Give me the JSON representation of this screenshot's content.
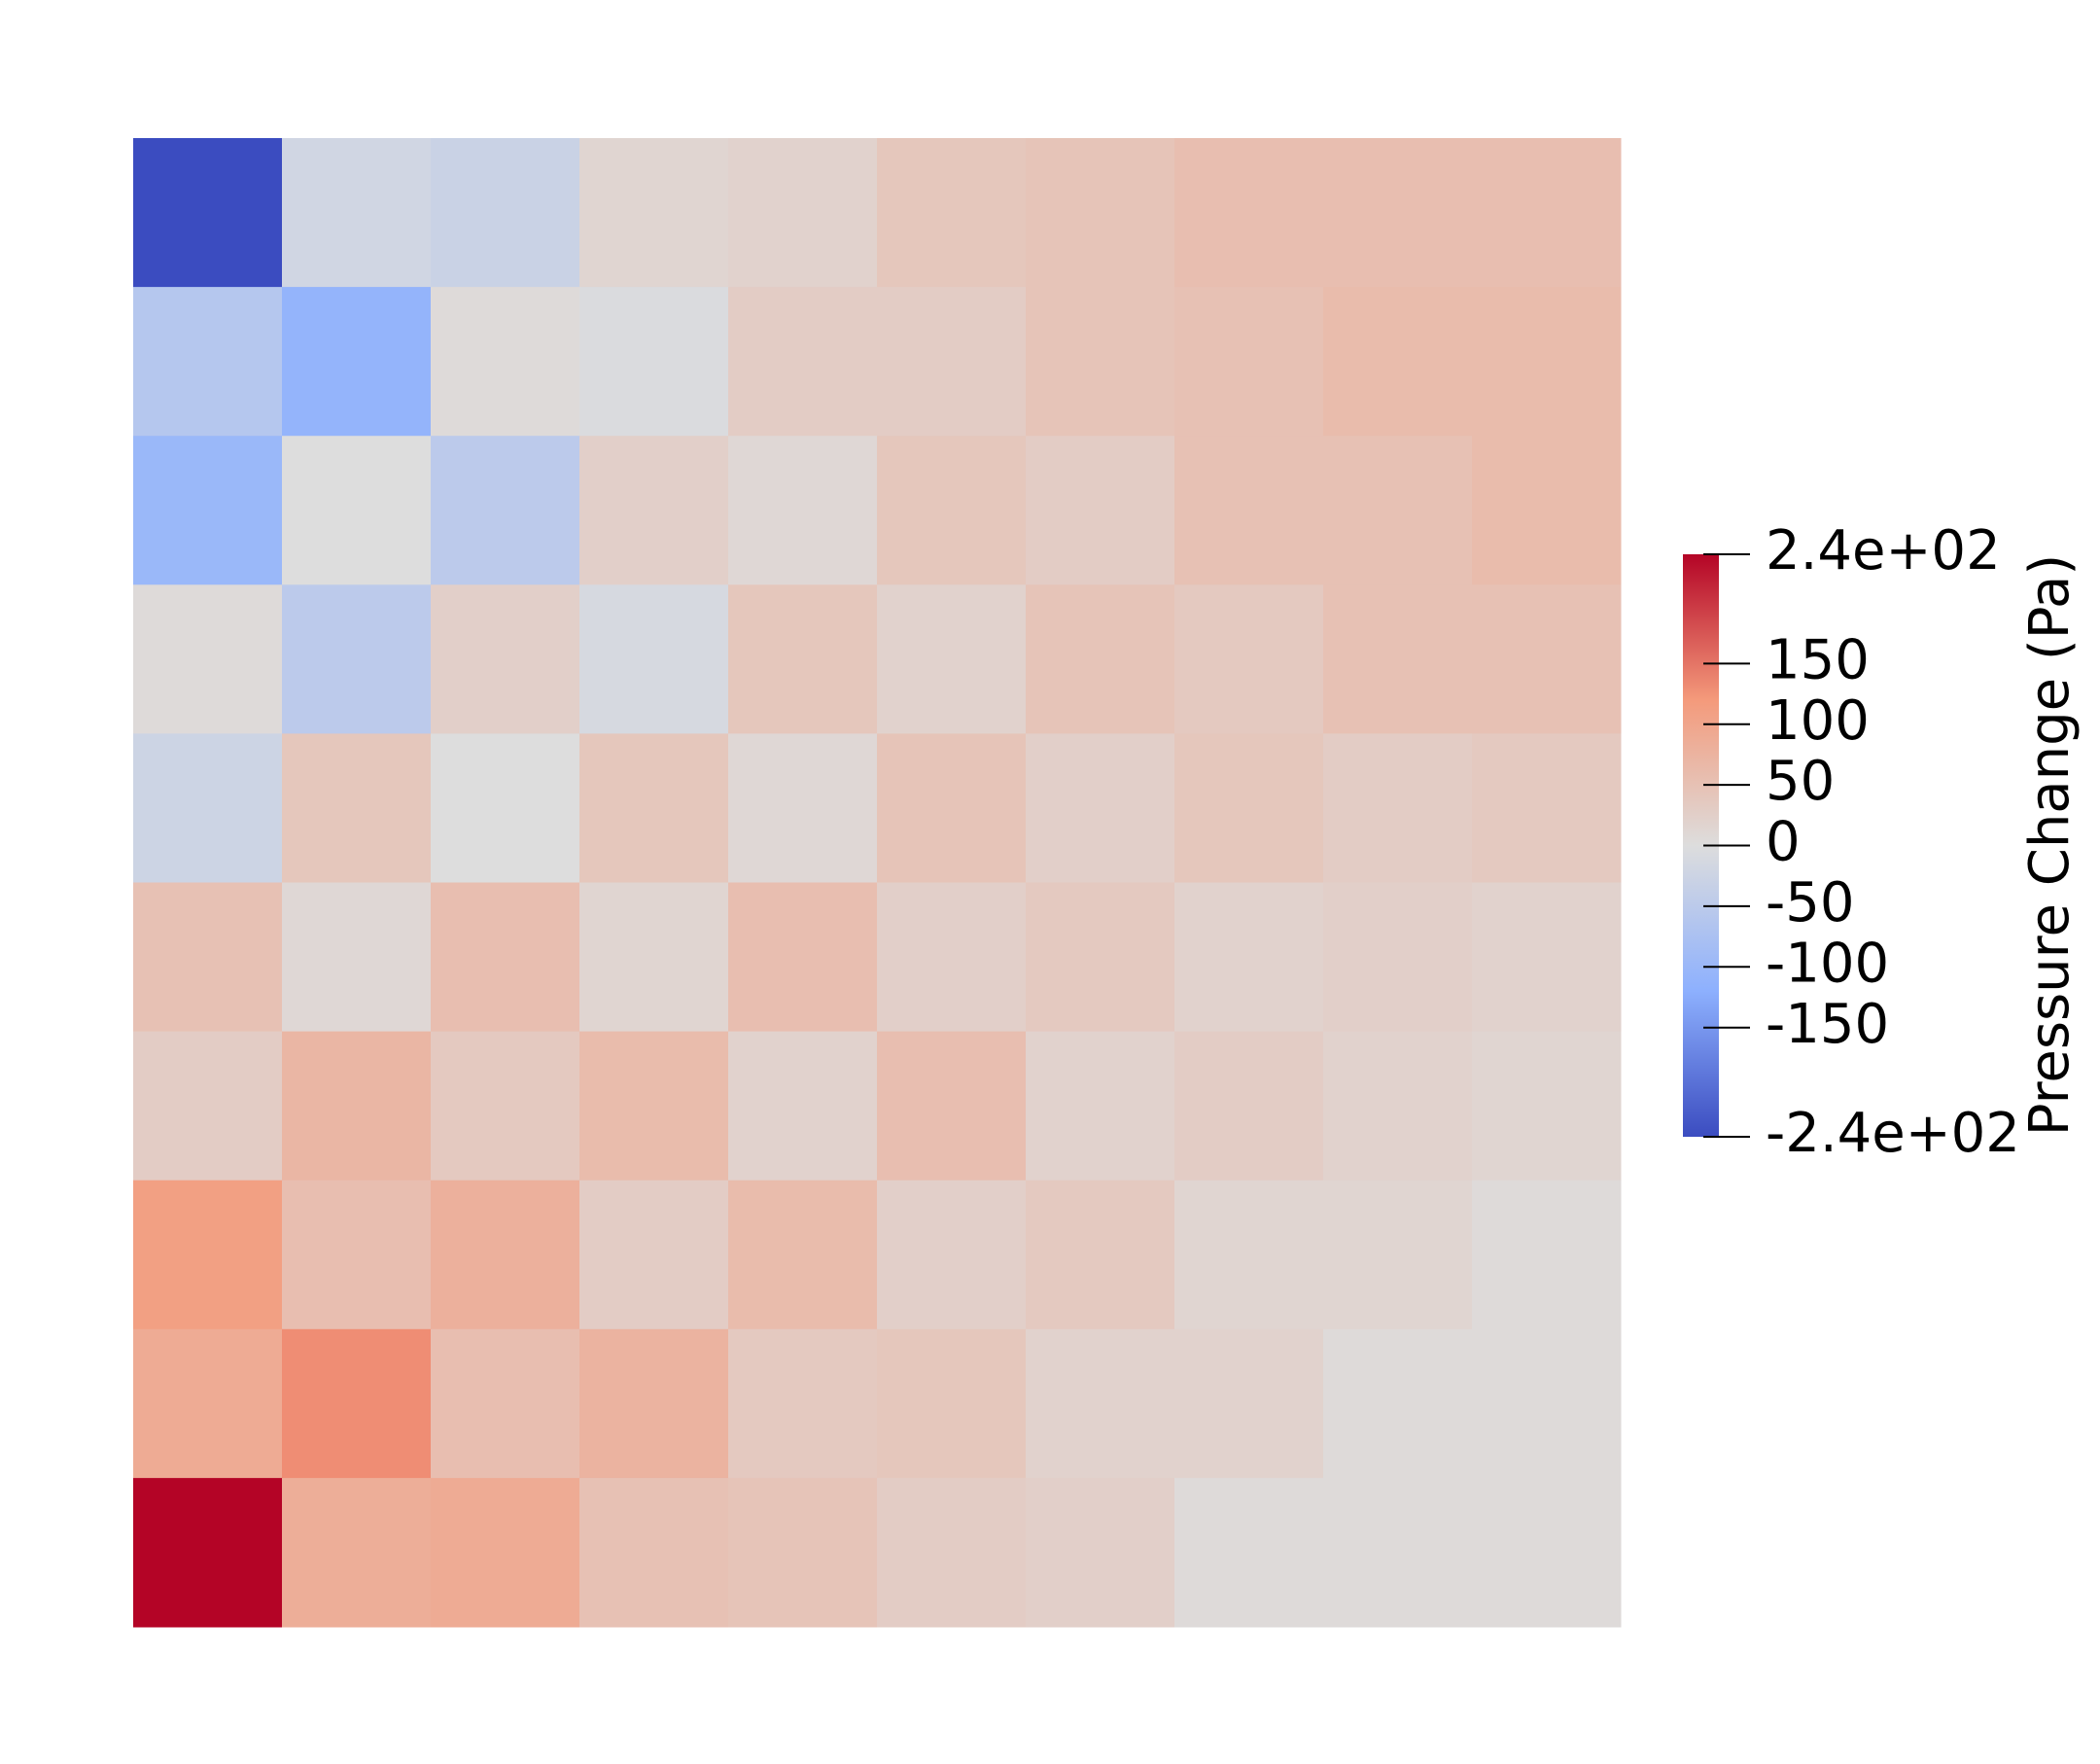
{
  "chart_data": {
    "type": "heatmap",
    "colorbar_label": "Pressure Change (Pa)",
    "colormap": [
      "#3b4cc0",
      "#8db0fe",
      "#dddddd",
      "#f49a7b",
      "#b40426"
    ],
    "clim": [
      -240,
      240
    ],
    "cticks": [
      {
        "value": 240,
        "label": "2.4e+02"
      },
      150,
      100,
      50,
      0,
      -50,
      -100,
      -150,
      {
        "value": -240,
        "label": "-2.4e+02"
      }
    ],
    "values": [
      [
        -240,
        -20,
        -30,
        15,
        20,
        40,
        45,
        55,
        55,
        55
      ],
      [
        -60,
        -110,
        5,
        -5,
        30,
        30,
        45,
        50,
        60,
        60
      ],
      [
        -100,
        0,
        -50,
        25,
        10,
        40,
        30,
        50,
        50,
        60
      ],
      [
        5,
        -50,
        25,
        -10,
        40,
        20,
        45,
        35,
        50,
        50
      ],
      [
        -25,
        40,
        0,
        40,
        10,
        45,
        25,
        40,
        30,
        35
      ],
      [
        50,
        10,
        55,
        15,
        55,
        25,
        35,
        20,
        25,
        20
      ],
      [
        30,
        70,
        35,
        60,
        20,
        55,
        20,
        30,
        20,
        15
      ],
      [
        110,
        55,
        80,
        30,
        60,
        25,
        35,
        15,
        15,
        5
      ],
      [
        90,
        130,
        55,
        75,
        35,
        40,
        20,
        20,
        5,
        5
      ],
      [
        240,
        85,
        90,
        50,
        45,
        30,
        25,
        5,
        5,
        5
      ]
    ]
  }
}
